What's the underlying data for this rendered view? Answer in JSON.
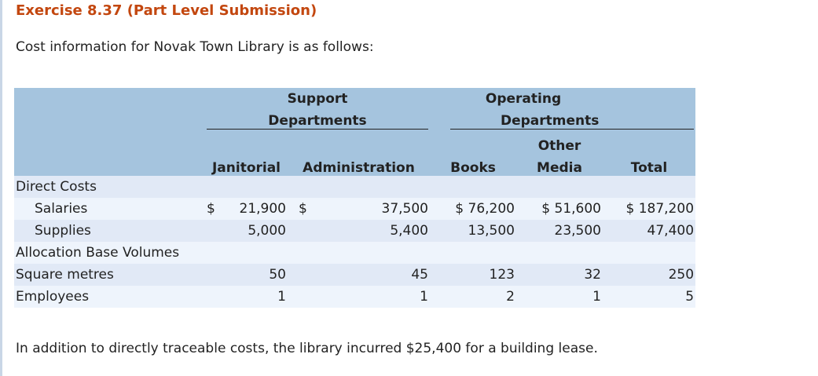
{
  "title": "Exercise 8.37 (Part Level Submission)",
  "intro": "Cost information for Novak Town Library is as follows:",
  "outro": "In addition to directly traceable costs, the library incurred $25,400 for a building lease.",
  "table": {
    "support_line1": "Support",
    "support_line2": "Departments",
    "operating_line1": "Operating",
    "operating_line2": "Departments",
    "other_line1": "Other",
    "columns": [
      "Janitorial",
      "Administration",
      "Books",
      "Media",
      "Total"
    ],
    "direct_costs_label": "Direct Costs",
    "salaries": {
      "label": "Salaries",
      "janitorial_sym": "$",
      "janitorial": "21,900",
      "admin_sym": "$",
      "admin": "37,500",
      "books": "$ 76,200",
      "media": "$ 51,600",
      "total": "$ 187,200"
    },
    "supplies": {
      "label": "Supplies",
      "janitorial": "5,000",
      "admin": "5,400",
      "books": "13,500",
      "media": "23,500",
      "total": "47,400"
    },
    "allocation_label": "Allocation Base Volumes",
    "square_metres": {
      "label": "Square metres",
      "janitorial": "50",
      "admin": "45",
      "books": "123",
      "media": "32",
      "total": "250"
    },
    "employees": {
      "label": "Employees",
      "janitorial": "1",
      "admin": "1",
      "books": "2",
      "media": "1",
      "total": "5"
    }
  }
}
